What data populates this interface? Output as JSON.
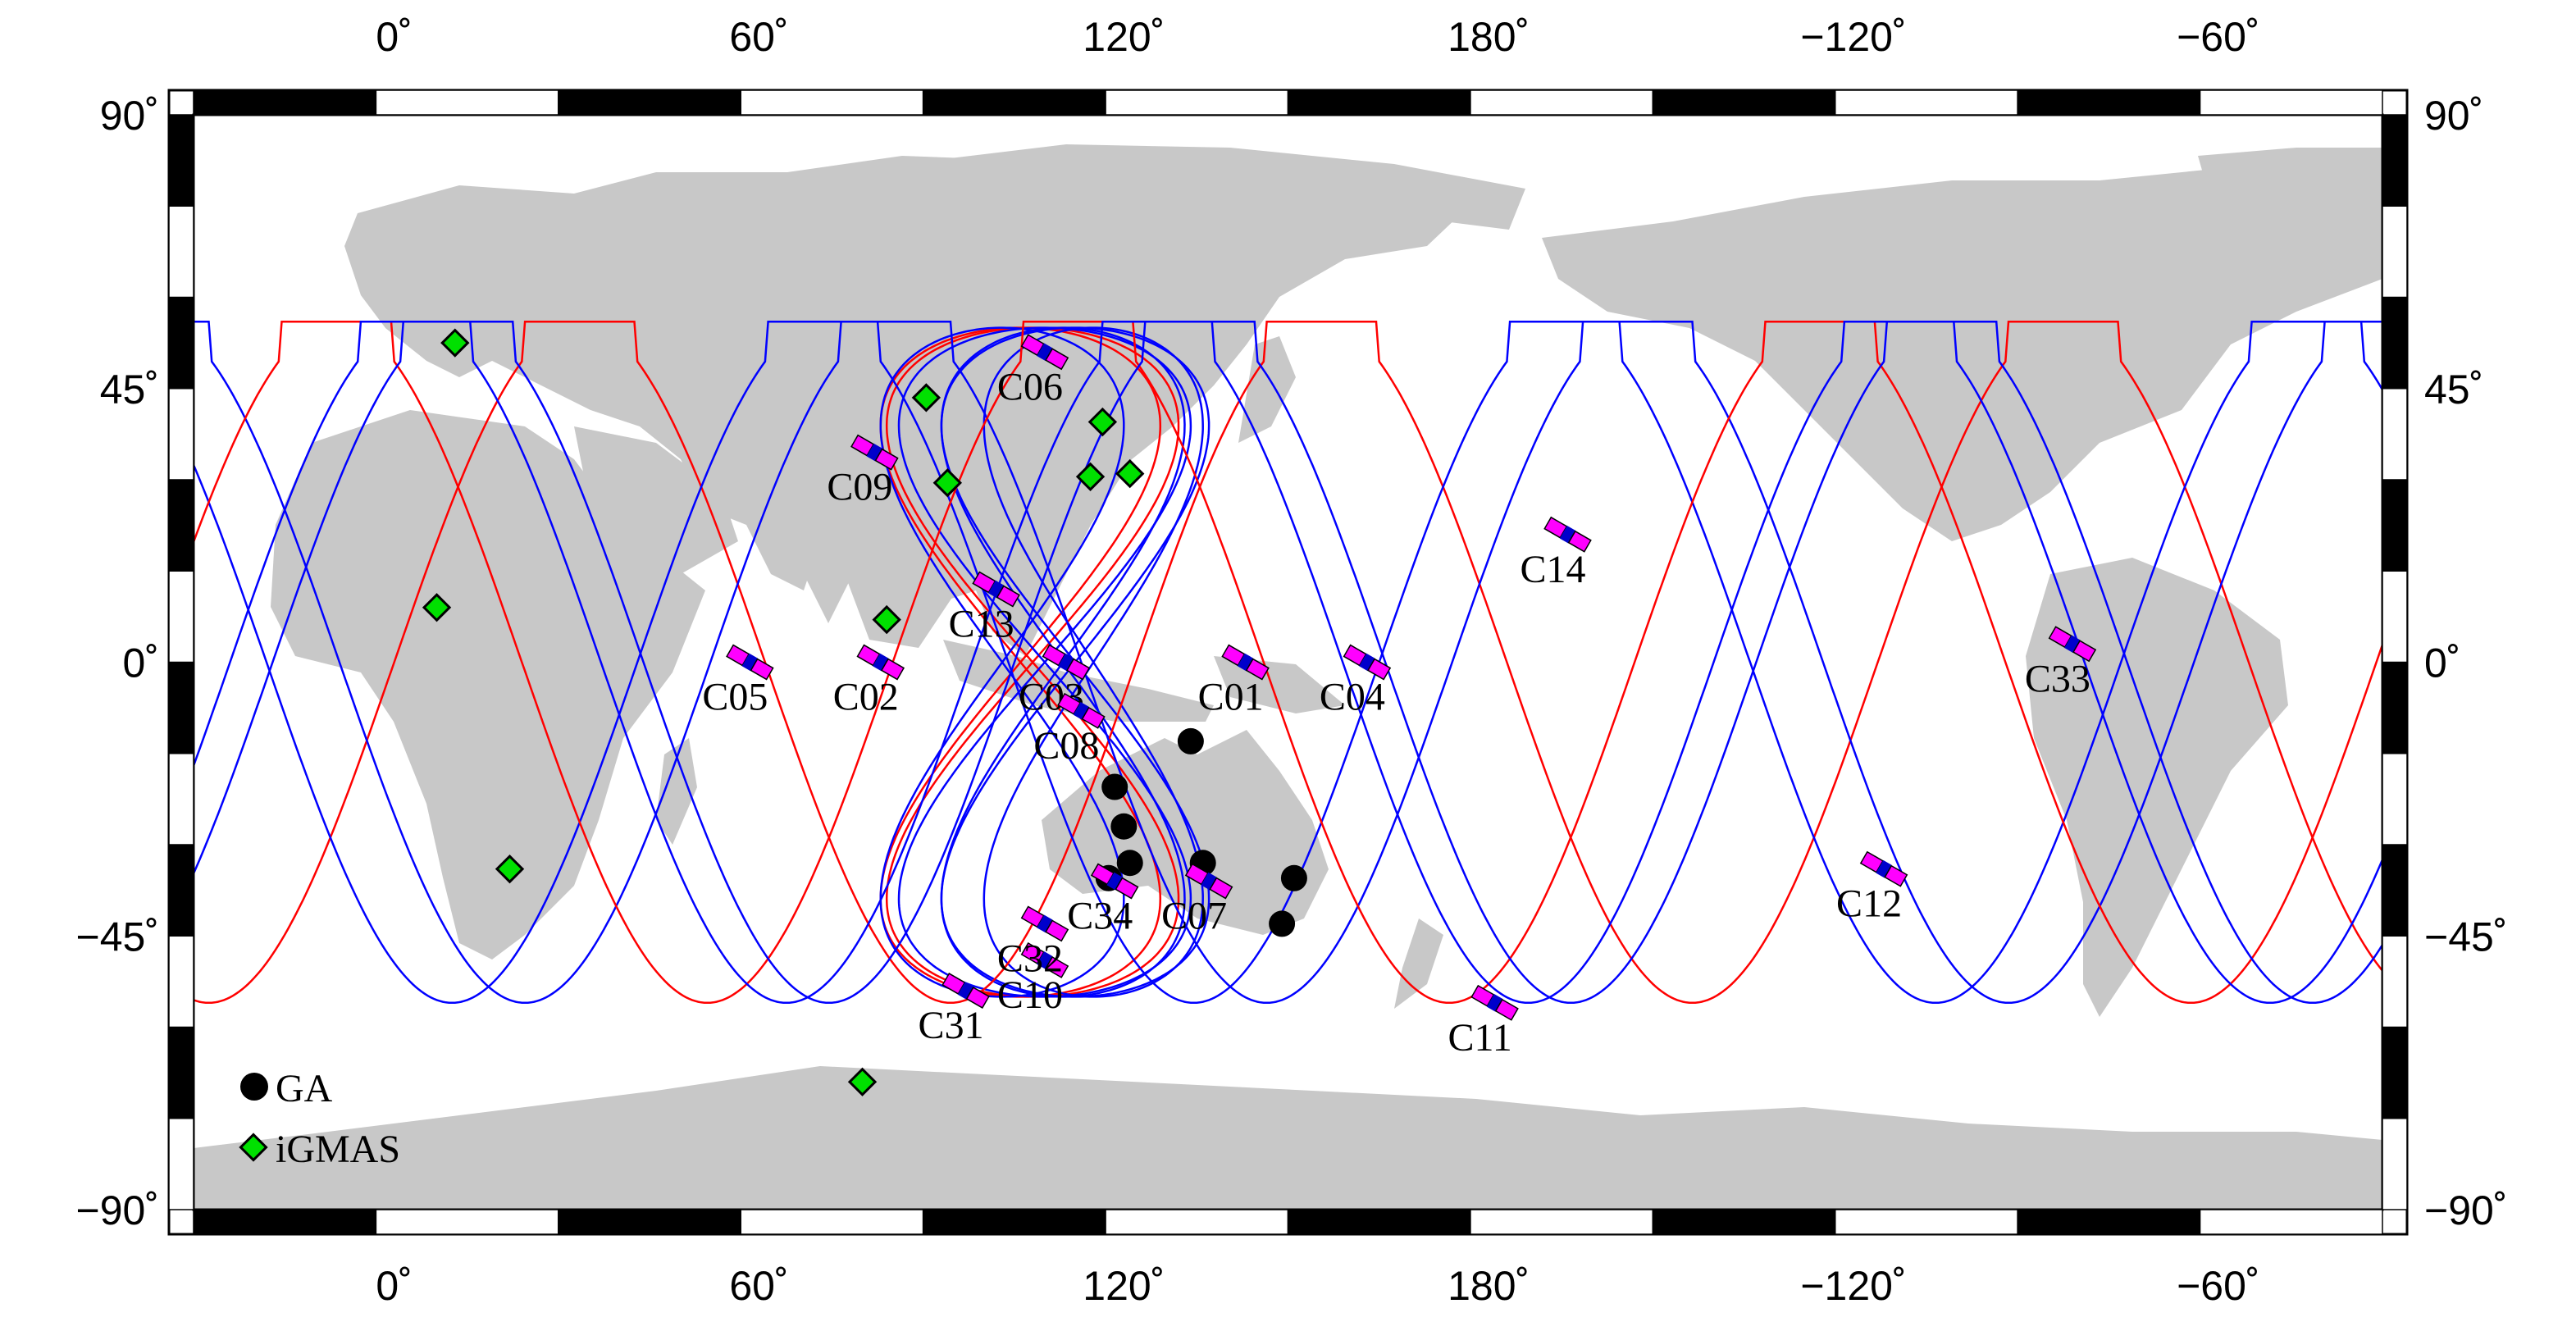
{
  "map": {
    "land_color": "#c8c8c8",
    "ocean_color": "#ffffff",
    "ground_track_colors": [
      "#ff0000",
      "#0000ff"
    ],
    "lon_ticks": [
      "0˚",
      "60˚",
      "120˚",
      "180˚",
      "−120˚",
      "−60˚"
    ],
    "lat_ticks": [
      "90˚",
      "45˚",
      "0˚",
      "−45˚",
      "−90˚"
    ],
    "lon_tick_values": [
      0,
      60,
      120,
      180,
      240,
      300
    ],
    "lat_tick_values": [
      90,
      45,
      0,
      -45,
      -90
    ],
    "lon_range": [
      -33,
      327
    ],
    "lat_range": [
      -90,
      90
    ]
  },
  "satellites": [
    {
      "id": "C01",
      "lon": 140.0,
      "lat": 0.0
    },
    {
      "id": "C02",
      "lon": 80.0,
      "lat": 0.0
    },
    {
      "id": "C03",
      "lon": 110.5,
      "lat": 0.0
    },
    {
      "id": "C04",
      "lon": 160.0,
      "lat": 0.0
    },
    {
      "id": "C05",
      "lon": 58.5,
      "lat": 0.0
    },
    {
      "id": "C06",
      "lon": 107.0,
      "lat": 51.0
    },
    {
      "id": "C07",
      "lon": 134.0,
      "lat": -36.0
    },
    {
      "id": "C08",
      "lon": 113.0,
      "lat": -8.0
    },
    {
      "id": "C09",
      "lon": 79.0,
      "lat": 34.5
    },
    {
      "id": "C10",
      "lon": 107.0,
      "lat": -49.0
    },
    {
      "id": "C11",
      "lon": 181.0,
      "lat": -56.0
    },
    {
      "id": "C12",
      "lon": 245.0,
      "lat": -34.0
    },
    {
      "id": "C13",
      "lon": 99.0,
      "lat": 12.0
    },
    {
      "id": "C14",
      "lon": 193.0,
      "lat": 21.0
    },
    {
      "id": "C31",
      "lon": 94.0,
      "lat": -54.0
    },
    {
      "id": "C32",
      "lon": 107.0,
      "lat": -43.0
    },
    {
      "id": "C33",
      "lon": 276.0,
      "lat": 3.0
    },
    {
      "id": "C34",
      "lon": 118.5,
      "lat": -36.0
    }
  ],
  "ga_stations": [
    {
      "lon": 131.0,
      "lat": -13.0
    },
    {
      "lon": 118.5,
      "lat": -20.5
    },
    {
      "lon": 120.0,
      "lat": -27.0
    },
    {
      "lon": 121.0,
      "lat": -33.0
    },
    {
      "lon": 117.5,
      "lat": -35.5
    },
    {
      "lon": 133.0,
      "lat": -33.0
    },
    {
      "lon": 148.0,
      "lat": -35.5
    },
    {
      "lon": 146.0,
      "lat": -43.0
    }
  ],
  "igmas_stations": [
    {
      "lon": 10.0,
      "lat": 52.5
    },
    {
      "lon": 7.0,
      "lat": 9.0
    },
    {
      "lon": 19.0,
      "lat": -34.0
    },
    {
      "lon": 77.0,
      "lat": -69.0
    },
    {
      "lon": 81.0,
      "lat": 7.0
    },
    {
      "lon": 87.5,
      "lat": 43.5
    },
    {
      "lon": 91.0,
      "lat": 29.5
    },
    {
      "lon": 114.5,
      "lat": 30.5
    },
    {
      "lon": 116.5,
      "lat": 39.5
    },
    {
      "lon": 121.0,
      "lat": 31.0
    }
  ],
  "legend": {
    "items": [
      {
        "label": "GA",
        "marker": "circle",
        "color": "#000000"
      },
      {
        "label": "iGMAS",
        "marker": "diamond",
        "color": "#00e000"
      }
    ]
  }
}
